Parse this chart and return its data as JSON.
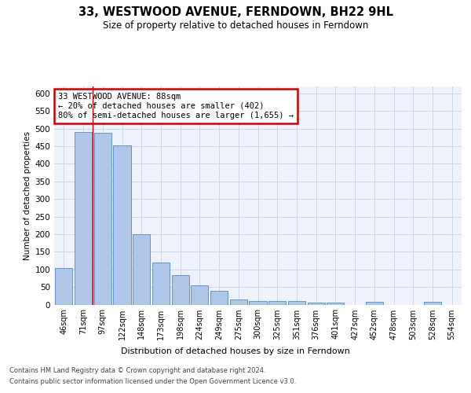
{
  "title": "33, WESTWOOD AVENUE, FERNDOWN, BH22 9HL",
  "subtitle": "Size of property relative to detached houses in Ferndown",
  "xlabel": "Distribution of detached houses by size in Ferndown",
  "ylabel": "Number of detached properties",
  "categories": [
    "46sqm",
    "71sqm",
    "97sqm",
    "122sqm",
    "148sqm",
    "173sqm",
    "198sqm",
    "224sqm",
    "249sqm",
    "275sqm",
    "300sqm",
    "325sqm",
    "351sqm",
    "376sqm",
    "401sqm",
    "427sqm",
    "452sqm",
    "478sqm",
    "503sqm",
    "528sqm",
    "554sqm"
  ],
  "values": [
    105,
    490,
    488,
    453,
    200,
    120,
    83,
    55,
    40,
    15,
    11,
    11,
    11,
    5,
    5,
    0,
    8,
    0,
    0,
    8,
    0
  ],
  "bar_color": "#aec6e8",
  "bar_edge_color": "#5588bb",
  "annotation_box_text": "33 WESTWOOD AVENUE: 88sqm\n← 20% of detached houses are smaller (402)\n80% of semi-detached houses are larger (1,655) →",
  "red_line_x": 1.5,
  "annotation_box_color": "#ffffff",
  "annotation_box_edge": "#cc0000",
  "grid_color": "#ccd4e8",
  "ylim": [
    0,
    620
  ],
  "yticks": [
    0,
    50,
    100,
    150,
    200,
    250,
    300,
    350,
    400,
    450,
    500,
    550,
    600
  ],
  "footer_line1": "Contains HM Land Registry data © Crown copyright and database right 2024.",
  "footer_line2": "Contains public sector information licensed under the Open Government Licence v3.0.",
  "bg_color": "#edf2fb",
  "title_fontsize": 10.5,
  "subtitle_fontsize": 8.5
}
